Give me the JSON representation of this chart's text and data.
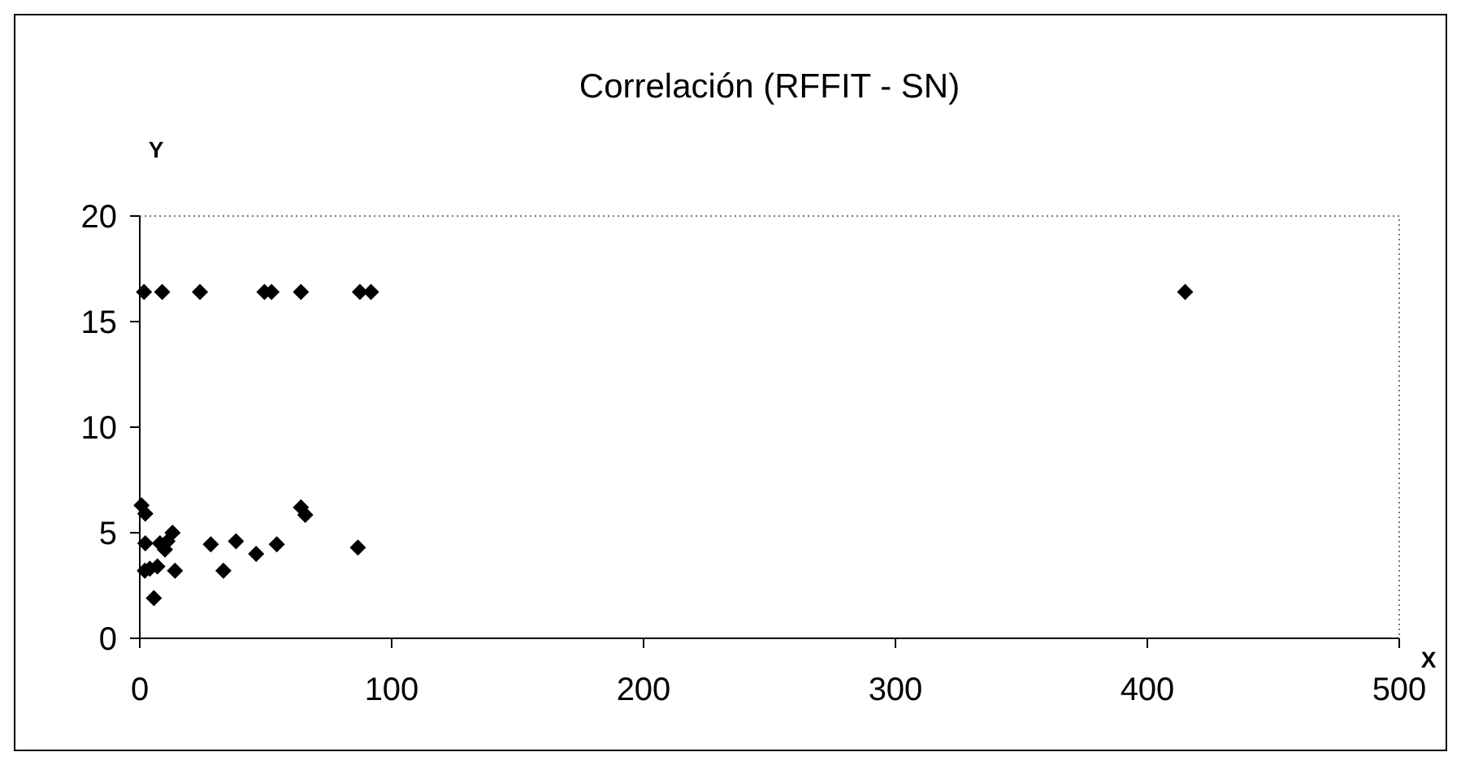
{
  "chart_data": {
    "type": "scatter",
    "title": "Correlación (RFFIT - SN)",
    "xlabel": "X",
    "ylabel": "Y",
    "marker": "diamond",
    "grid": false,
    "xlim": [
      0,
      500
    ],
    "ylim": [
      0,
      20
    ],
    "xticks": [
      0,
      100,
      200,
      300,
      400,
      500
    ],
    "yticks": [
      0,
      5,
      10,
      15,
      20
    ],
    "series": [
      {
        "color": "#000000",
        "x": [
          1.7,
          8.9,
          23.9,
          49.5,
          52.3,
          64,
          87.4,
          91.8,
          415,
          0.7,
          2.2,
          2.2,
          8,
          10,
          11,
          13,
          2,
          4,
          7,
          14,
          5.6,
          28.2,
          33.2,
          38.2,
          46.2,
          54.4,
          64,
          65.7,
          86.6
        ],
        "values": [
          16.4,
          16.4,
          16.4,
          16.4,
          16.4,
          16.4,
          16.4,
          16.4,
          16.4,
          6.3,
          5.9,
          4.5,
          4.5,
          4.2,
          4.6,
          5.0,
          3.2,
          3.3,
          3.4,
          3.2,
          1.9,
          4.45,
          3.2,
          4.6,
          4.0,
          4.45,
          6.2,
          5.85,
          4.3
        ]
      }
    ]
  }
}
